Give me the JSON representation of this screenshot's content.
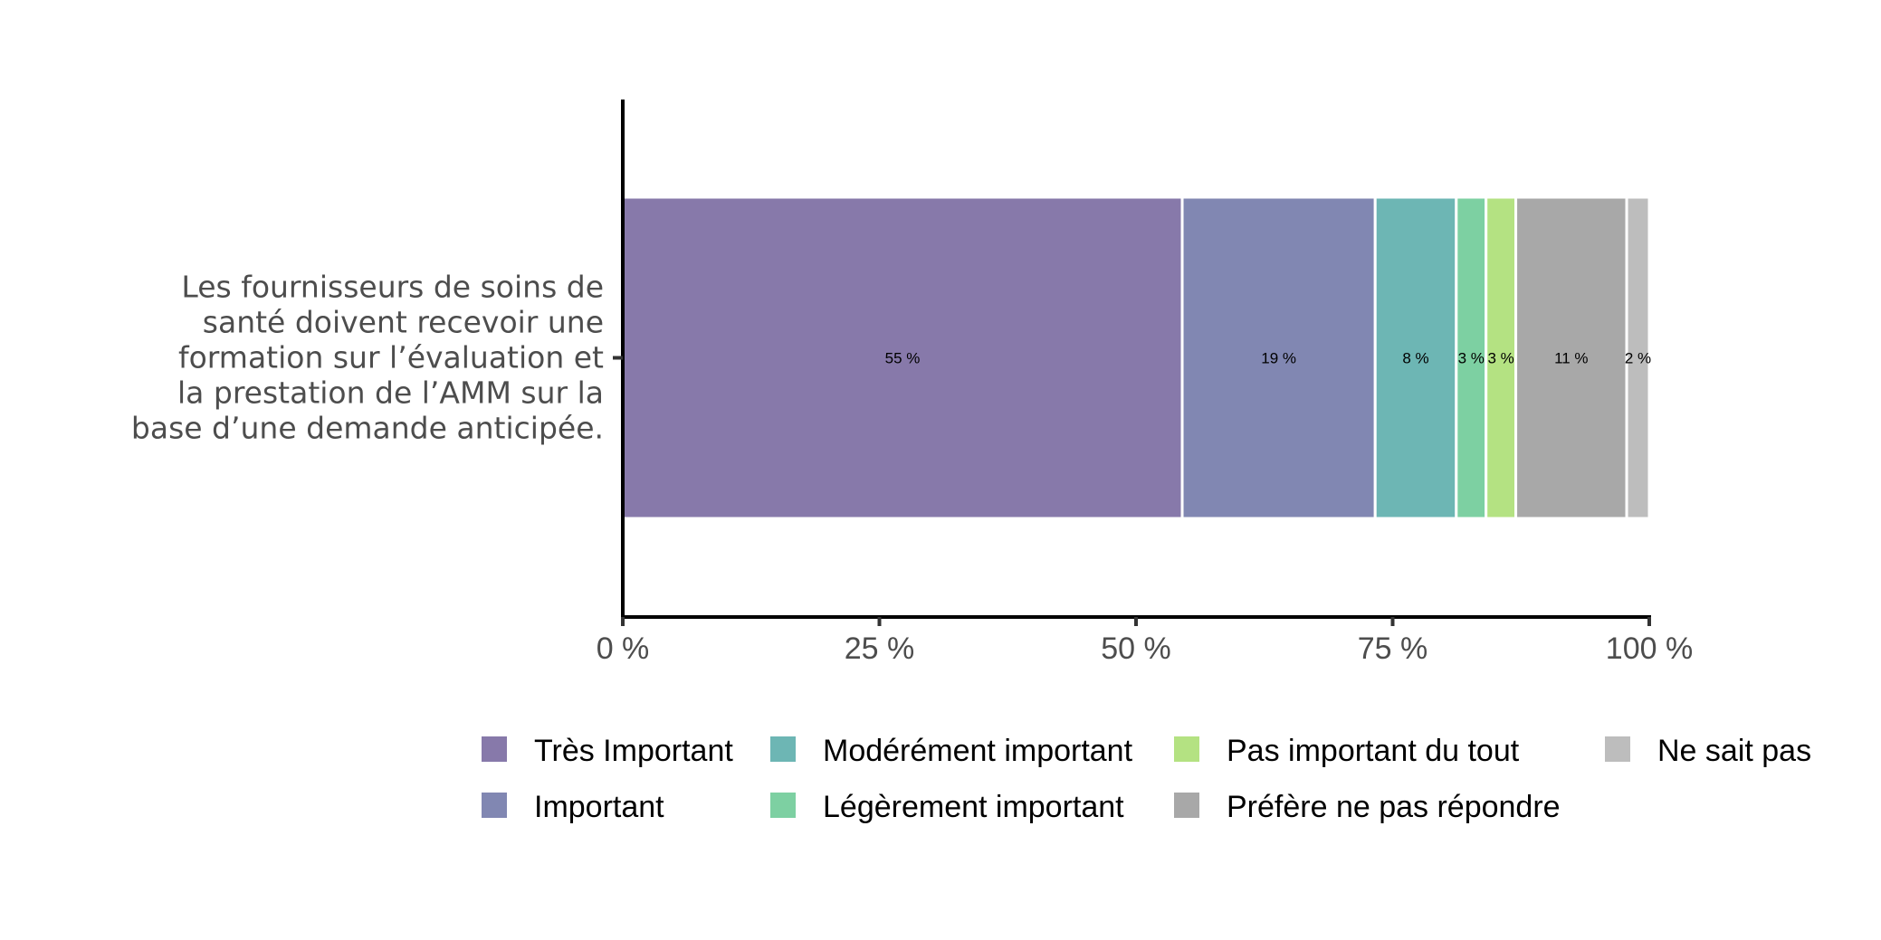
{
  "chart_data": {
    "type": "bar",
    "orientation": "horizontal",
    "stacked": true,
    "category_label_lines": [
      "Les fournisseurs de soins de",
      "santé doivent recevoir une",
      "formation sur l’évaluation et",
      "la prestation de l’AMM sur la",
      "base d’une demande anticipée."
    ],
    "xlim": [
      0,
      100
    ],
    "x_ticks": [
      0,
      25,
      50,
      75,
      100
    ],
    "x_tick_labels": [
      "0 %",
      "25 %",
      "50 %",
      "75 %",
      "100 %"
    ],
    "series": [
      {
        "name": "Très Important",
        "value": 54.5,
        "label": "55 %",
        "color": "#8779AA"
      },
      {
        "name": "Important",
        "value": 18.8,
        "label": "19 %",
        "color": "#8187B2"
      },
      {
        "name": "Modérément important",
        "value": 7.9,
        "label": "8 %",
        "color": "#6DB6B4"
      },
      {
        "name": "Légèrement important",
        "value": 2.9,
        "label": "3 %",
        "color": "#7DD0A2"
      },
      {
        "name": "Pas important du tout",
        "value": 2.9,
        "label": "3 %",
        "color": "#B4E282"
      },
      {
        "name": "Préfère ne pas répondre",
        "value": 10.8,
        "label": "11 %",
        "color": "#A8A8A8"
      },
      {
        "name": "Ne sait pas",
        "value": 2.2,
        "label": "2 %",
        "color": "#BDBDBD"
      }
    ],
    "legend": {
      "position": "bottom",
      "columns": [
        [
          "Très Important",
          "Important"
        ],
        [
          "Modérément important",
          "Légèrement important"
        ],
        [
          "Pas important du tout",
          "Préfère ne pas répondre"
        ],
        [
          "Ne sait pas"
        ]
      ]
    },
    "grid": false
  }
}
